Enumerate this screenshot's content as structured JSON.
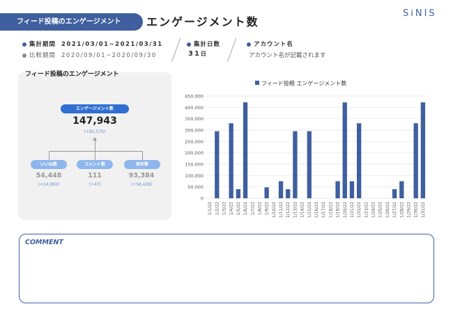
{
  "header": {
    "section_tag": "フィード投稿のエンゲージメント",
    "title": "エンゲージメント数",
    "logo": "SiNIS"
  },
  "meta": {
    "period_label": "集計期間",
    "period_value": "2021/03/01~2021/03/31",
    "compare_label": "比較期間",
    "compare_value": "2020/09/01~2020/09/30",
    "days_label": "集計日数",
    "days_value": "31",
    "days_unit": "日",
    "account_label": "アカウント名",
    "account_value": "アカウント名が記載されます"
  },
  "kpi": {
    "title": "フィード投稿のエンゲージメント",
    "main_label": "エンゲージメント数",
    "main_value": "147,943",
    "main_delta": "(+82,576)",
    "items": [
      {
        "label": "いいね数",
        "value": "54,448",
        "delta": "(+24,091)"
      },
      {
        "label": "コメント数",
        "value": "111",
        "delta": "(+47)"
      },
      {
        "label": "保存数",
        "value": "93,384",
        "delta": "(+58,438)"
      }
    ]
  },
  "chart_data": {
    "type": "bar",
    "title": "",
    "legend": "フィード投稿 エンゲージメント数",
    "legend_position": "top",
    "bar_color": "#3f5f9e",
    "ylim": [
      0,
      450000
    ],
    "yticks": [
      "0",
      "50,000",
      "100,000",
      "150,000",
      "200,000",
      "250,000",
      "300,000",
      "350,000",
      "400,000",
      "450,000"
    ],
    "categories": [
      "1/1/22",
      "1/2/22",
      "1/3/22",
      "1/4/22",
      "1/5/22",
      "1/6/22",
      "1/7/22",
      "1/8/22",
      "1/9/22",
      "1/10/22",
      "1/11/22",
      "1/12/22",
      "1/13/22",
      "1/14/22",
      "1/15/22",
      "1/16/22",
      "1/17/22",
      "1/18/22",
      "1/19/22",
      "1/20/22",
      "1/21/22",
      "1/22/22",
      "1/23/22",
      "1/24/22",
      "1/25/22",
      "1/26/22",
      "1/27/22",
      "1/28/22",
      "1/29/22",
      "1/30/22",
      "1/31/22"
    ],
    "values": [
      0,
      295000,
      0,
      330000,
      40000,
      422000,
      0,
      0,
      48000,
      0,
      75000,
      40000,
      295000,
      0,
      295000,
      0,
      0,
      0,
      75000,
      422000,
      75000,
      330000,
      0,
      0,
      0,
      0,
      40000,
      75000,
      0,
      330000,
      422000
    ]
  },
  "comment": {
    "label": "COMMENT"
  }
}
